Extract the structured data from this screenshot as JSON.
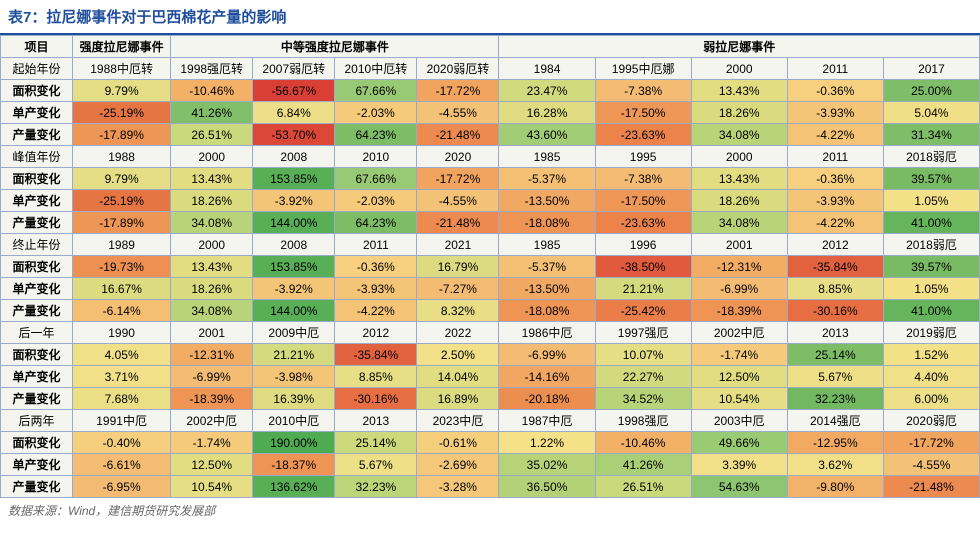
{
  "title": "表7：拉尼娜事件对于巴西棉花产量的影响",
  "source": "数据来源：Wind，建信期货研究发展部",
  "header": {
    "item": "项目",
    "groups": [
      "强度拉尼娜事件",
      "中等强度拉尼娜事件",
      "弱拉尼娜事件"
    ],
    "group_spans": [
      1,
      4,
      5
    ]
  },
  "rowLabels": {
    "start": "起始年份",
    "peak": "峰值年份",
    "end": "终止年份",
    "next1": "后一年",
    "next2": "后两年",
    "area": "面积变化",
    "yield": "单产变化",
    "output": "产量变化"
  },
  "columns_count": 10,
  "sections": [
    {
      "label_key": "start",
      "years": [
        "1988中厄转",
        "1998强厄转",
        "2007弱厄转",
        "2010中厄转",
        "2020弱厄转",
        "1984",
        "1995中厄娜",
        "2000",
        "2011",
        "2017"
      ],
      "rows": [
        {
          "key": "area",
          "vals": [
            {
              "v": "9.79%",
              "c": "#e6de86"
            },
            {
              "v": "-10.46%",
              "c": "#f3b168"
            },
            {
              "v": "-56.67%",
              "c": "#d93f35"
            },
            {
              "v": "67.66%",
              "c": "#98c974"
            },
            {
              "v": "-17.72%",
              "c": "#f0a45e"
            },
            {
              "v": "23.47%",
              "c": "#d1db7d"
            },
            {
              "v": "-7.38%",
              "c": "#f4bb72"
            },
            {
              "v": "13.43%",
              "c": "#e3dd82"
            },
            {
              "v": "-0.36%",
              "c": "#f6d07e"
            },
            {
              "v": "25.00%",
              "c": "#7fbe68"
            }
          ]
        },
        {
          "key": "yield",
          "vals": [
            {
              "v": "-25.19%",
              "c": "#e67544"
            },
            {
              "v": "41.26%",
              "c": "#81bf6a"
            },
            {
              "v": "6.84%",
              "c": "#ecdf87"
            },
            {
              "v": "-2.03%",
              "c": "#f5ca7a"
            },
            {
              "v": "-4.55%",
              "c": "#f4c276"
            },
            {
              "v": "16.28%",
              "c": "#dedb80"
            },
            {
              "v": "-17.50%",
              "c": "#ee9756"
            },
            {
              "v": "18.26%",
              "c": "#dadb7f"
            },
            {
              "v": "-3.93%",
              "c": "#f4c477"
            },
            {
              "v": "5.04%",
              "c": "#efe088"
            }
          ]
        },
        {
          "key": "output",
          "vals": [
            {
              "v": "-17.89%",
              "c": "#ee9656"
            },
            {
              "v": "26.51%",
              "c": "#c9d97b"
            },
            {
              "v": "-53.70%",
              "c": "#db4838"
            },
            {
              "v": "64.23%",
              "c": "#7dbd66"
            },
            {
              "v": "-21.48%",
              "c": "#ec8a4f"
            },
            {
              "v": "43.60%",
              "c": "#a2cd76"
            },
            {
              "v": "-23.63%",
              "c": "#eb834b"
            },
            {
              "v": "34.08%",
              "c": "#b9d478"
            },
            {
              "v": "-4.22%",
              "c": "#f4c376"
            },
            {
              "v": "31.34%",
              "c": "#7fbe68"
            }
          ]
        }
      ]
    },
    {
      "label_key": "peak",
      "years": [
        "1988",
        "2000",
        "2008",
        "2010",
        "2020",
        "1985",
        "1995",
        "2000",
        "2011",
        "2018弱厄"
      ],
      "rows": [
        {
          "key": "area",
          "vals": [
            {
              "v": "9.79%",
              "c": "#e6de86"
            },
            {
              "v": "13.43%",
              "c": "#e3dd82"
            },
            {
              "v": "153.85%",
              "c": "#58af56"
            },
            {
              "v": "67.66%",
              "c": "#98c974"
            },
            {
              "v": "-17.72%",
              "c": "#f0a45e"
            },
            {
              "v": "-5.37%",
              "c": "#f4c074"
            },
            {
              "v": "-7.38%",
              "c": "#f4bb72"
            },
            {
              "v": "13.43%",
              "c": "#e3dd82"
            },
            {
              "v": "-0.36%",
              "c": "#f6d07e"
            },
            {
              "v": "39.57%",
              "c": "#79bb63"
            }
          ]
        },
        {
          "key": "yield",
          "vals": [
            {
              "v": "-25.19%",
              "c": "#e67544"
            },
            {
              "v": "18.26%",
              "c": "#dadb7f"
            },
            {
              "v": "-3.92%",
              "c": "#f4c477"
            },
            {
              "v": "-2.03%",
              "c": "#f5ca7a"
            },
            {
              "v": "-4.55%",
              "c": "#f4c276"
            },
            {
              "v": "-13.50%",
              "c": "#f1a862"
            },
            {
              "v": "-17.50%",
              "c": "#ee9756"
            },
            {
              "v": "18.26%",
              "c": "#dadb7f"
            },
            {
              "v": "-3.93%",
              "c": "#f4c477"
            },
            {
              "v": "1.05%",
              "c": "#f3e187"
            }
          ]
        },
        {
          "key": "output",
          "vals": [
            {
              "v": "-17.89%",
              "c": "#ee9656"
            },
            {
              "v": "34.08%",
              "c": "#b9d478"
            },
            {
              "v": "144.00%",
              "c": "#58af56"
            },
            {
              "v": "64.23%",
              "c": "#7dbd66"
            },
            {
              "v": "-21.48%",
              "c": "#ec8a4f"
            },
            {
              "v": "-18.08%",
              "c": "#ee9555"
            },
            {
              "v": "-23.63%",
              "c": "#eb834b"
            },
            {
              "v": "34.08%",
              "c": "#b9d478"
            },
            {
              "v": "-4.22%",
              "c": "#f4c376"
            },
            {
              "v": "41.00%",
              "c": "#66b45c"
            }
          ]
        }
      ]
    },
    {
      "label_key": "end",
      "years": [
        "1989",
        "2000",
        "2008",
        "2011",
        "2021",
        "1985",
        "1996",
        "2001",
        "2012",
        "2018弱厄"
      ],
      "rows": [
        {
          "key": "area",
          "vals": [
            {
              "v": "-19.73%",
              "c": "#ed9052"
            },
            {
              "v": "13.43%",
              "c": "#e3dd82"
            },
            {
              "v": "153.85%",
              "c": "#58af56"
            },
            {
              "v": "-0.36%",
              "c": "#f6d07e"
            },
            {
              "v": "16.79%",
              "c": "#dddb80"
            },
            {
              "v": "-5.37%",
              "c": "#f4c074"
            },
            {
              "v": "-38.50%",
              "c": "#e15a3d"
            },
            {
              "v": "-12.31%",
              "c": "#f2ac64"
            },
            {
              "v": "-35.84%",
              "c": "#e2613f"
            },
            {
              "v": "39.57%",
              "c": "#79bb63"
            }
          ]
        },
        {
          "key": "yield",
          "vals": [
            {
              "v": "16.67%",
              "c": "#dddb80"
            },
            {
              "v": "18.26%",
              "c": "#dadb7f"
            },
            {
              "v": "-3.92%",
              "c": "#f4c477"
            },
            {
              "v": "-3.93%",
              "c": "#f4c477"
            },
            {
              "v": "-7.27%",
              "c": "#f4bb72"
            },
            {
              "v": "-13.50%",
              "c": "#f1a862"
            },
            {
              "v": "21.21%",
              "c": "#d5da7e"
            },
            {
              "v": "-6.99%",
              "c": "#f4bc73"
            },
            {
              "v": "8.85%",
              "c": "#e8de86"
            },
            {
              "v": "1.05%",
              "c": "#f3e187"
            }
          ]
        },
        {
          "key": "output",
          "vals": [
            {
              "v": "-6.14%",
              "c": "#f4be73"
            },
            {
              "v": "34.08%",
              "c": "#b9d478"
            },
            {
              "v": "144.00%",
              "c": "#58af56"
            },
            {
              "v": "-4.22%",
              "c": "#f4c376"
            },
            {
              "v": "8.32%",
              "c": "#e9de86"
            },
            {
              "v": "-18.08%",
              "c": "#ee9555"
            },
            {
              "v": "-25.42%",
              "c": "#ea7e48"
            },
            {
              "v": "-18.39%",
              "c": "#ee9455"
            },
            {
              "v": "-30.16%",
              "c": "#e66e42"
            },
            {
              "v": "41.00%",
              "c": "#66b45c"
            }
          ]
        }
      ]
    },
    {
      "label_key": "next1",
      "years": [
        "1990",
        "2001",
        "2009中厄",
        "2012",
        "2022",
        "1986中厄",
        "1997强厄",
        "2002中厄",
        "2013",
        "2019弱厄"
      ],
      "rows": [
        {
          "key": "area",
          "vals": [
            {
              "v": "4.05%",
              "c": "#f0e088"
            },
            {
              "v": "-12.31%",
              "c": "#f2ac64"
            },
            {
              "v": "21.21%",
              "c": "#d5da7e"
            },
            {
              "v": "-35.84%",
              "c": "#e2613f"
            },
            {
              "v": "2.50%",
              "c": "#f2e188"
            },
            {
              "v": "-6.99%",
              "c": "#f4bc73"
            },
            {
              "v": "10.07%",
              "c": "#e6de85"
            },
            {
              "v": "-1.74%",
              "c": "#f5cb7b"
            },
            {
              "v": "25.14%",
              "c": "#7cbd66"
            },
            {
              "v": "1.52%",
              "c": "#f3e187"
            }
          ]
        },
        {
          "key": "yield",
          "vals": [
            {
              "v": "3.71%",
              "c": "#f1e088"
            },
            {
              "v": "-6.99%",
              "c": "#f4bc73"
            },
            {
              "v": "-3.98%",
              "c": "#f4c477"
            },
            {
              "v": "8.85%",
              "c": "#e8de86"
            },
            {
              "v": "14.04%",
              "c": "#e1dd81"
            },
            {
              "v": "-14.16%",
              "c": "#f1a661"
            },
            {
              "v": "22.27%",
              "c": "#d3da7d"
            },
            {
              "v": "12.50%",
              "c": "#e3dd82"
            },
            {
              "v": "5.67%",
              "c": "#eee087"
            },
            {
              "v": "4.40%",
              "c": "#f0e088"
            }
          ]
        },
        {
          "key": "output",
          "vals": [
            {
              "v": "7.68%",
              "c": "#eadf85"
            },
            {
              "v": "-18.39%",
              "c": "#ee9455"
            },
            {
              "v": "16.39%",
              "c": "#dedb80"
            },
            {
              "v": "-30.16%",
              "c": "#e66e42"
            },
            {
              "v": "16.89%",
              "c": "#dddb80"
            },
            {
              "v": "-20.18%",
              "c": "#ed8e51"
            },
            {
              "v": "34.52%",
              "c": "#b8d478"
            },
            {
              "v": "10.54%",
              "c": "#e5de85"
            },
            {
              "v": "32.23%",
              "c": "#71b860"
            },
            {
              "v": "6.00%",
              "c": "#ede088"
            }
          ]
        }
      ]
    },
    {
      "label_key": "next2",
      "years": [
        "1991中厄",
        "2002中厄",
        "2010中厄",
        "2013",
        "2023中厄",
        "1987中厄",
        "1998强厄",
        "2003中厄",
        "2014强厄",
        "2020弱厄"
      ],
      "rows": [
        {
          "key": "area",
          "vals": [
            {
              "v": "-0.40%",
              "c": "#f6cf7e"
            },
            {
              "v": "-1.74%",
              "c": "#f5cb7b"
            },
            {
              "v": "190.00%",
              "c": "#4fab52"
            },
            {
              "v": "25.14%",
              "c": "#cdda7c"
            },
            {
              "v": "-0.61%",
              "c": "#f6cf7d"
            },
            {
              "v": "1.22%",
              "c": "#f4e188"
            },
            {
              "v": "-10.46%",
              "c": "#f3b168"
            },
            {
              "v": "49.66%",
              "c": "#99ca74"
            },
            {
              "v": "-12.95%",
              "c": "#f2aa63"
            },
            {
              "v": "-17.72%",
              "c": "#f0a45e"
            }
          ]
        },
        {
          "key": "yield",
          "vals": [
            {
              "v": "-6.61%",
              "c": "#f4bd73"
            },
            {
              "v": "12.50%",
              "c": "#e3dd82"
            },
            {
              "v": "-18.37%",
              "c": "#ee9455"
            },
            {
              "v": "5.67%",
              "c": "#eee087"
            },
            {
              "v": "-2.69%",
              "c": "#f5c879"
            },
            {
              "v": "35.02%",
              "c": "#b6d378"
            },
            {
              "v": "41.26%",
              "c": "#a9d076"
            },
            {
              "v": "3.39%",
              "c": "#f1e088"
            },
            {
              "v": "3.62%",
              "c": "#f1e088"
            },
            {
              "v": "-4.55%",
              "c": "#f4c276"
            }
          ]
        },
        {
          "key": "output",
          "vals": [
            {
              "v": "-6.95%",
              "c": "#f4bc73"
            },
            {
              "v": "10.54%",
              "c": "#e5de85"
            },
            {
              "v": "136.62%",
              "c": "#58af56"
            },
            {
              "v": "32.23%",
              "c": "#bcd579"
            },
            {
              "v": "-3.28%",
              "c": "#f5c779"
            },
            {
              "v": "36.50%",
              "c": "#b3d277"
            },
            {
              "v": "26.51%",
              "c": "#c9d97b"
            },
            {
              "v": "54.63%",
              "c": "#8ec571"
            },
            {
              "v": "-9.80%",
              "c": "#f3b269"
            },
            {
              "v": "-21.48%",
              "c": "#ec8a4f"
            }
          ]
        }
      ]
    }
  ],
  "style": {
    "title_color": "#1f4e9c",
    "border_color": "#9aaacc",
    "header_bg": "#f5f5f0"
  }
}
